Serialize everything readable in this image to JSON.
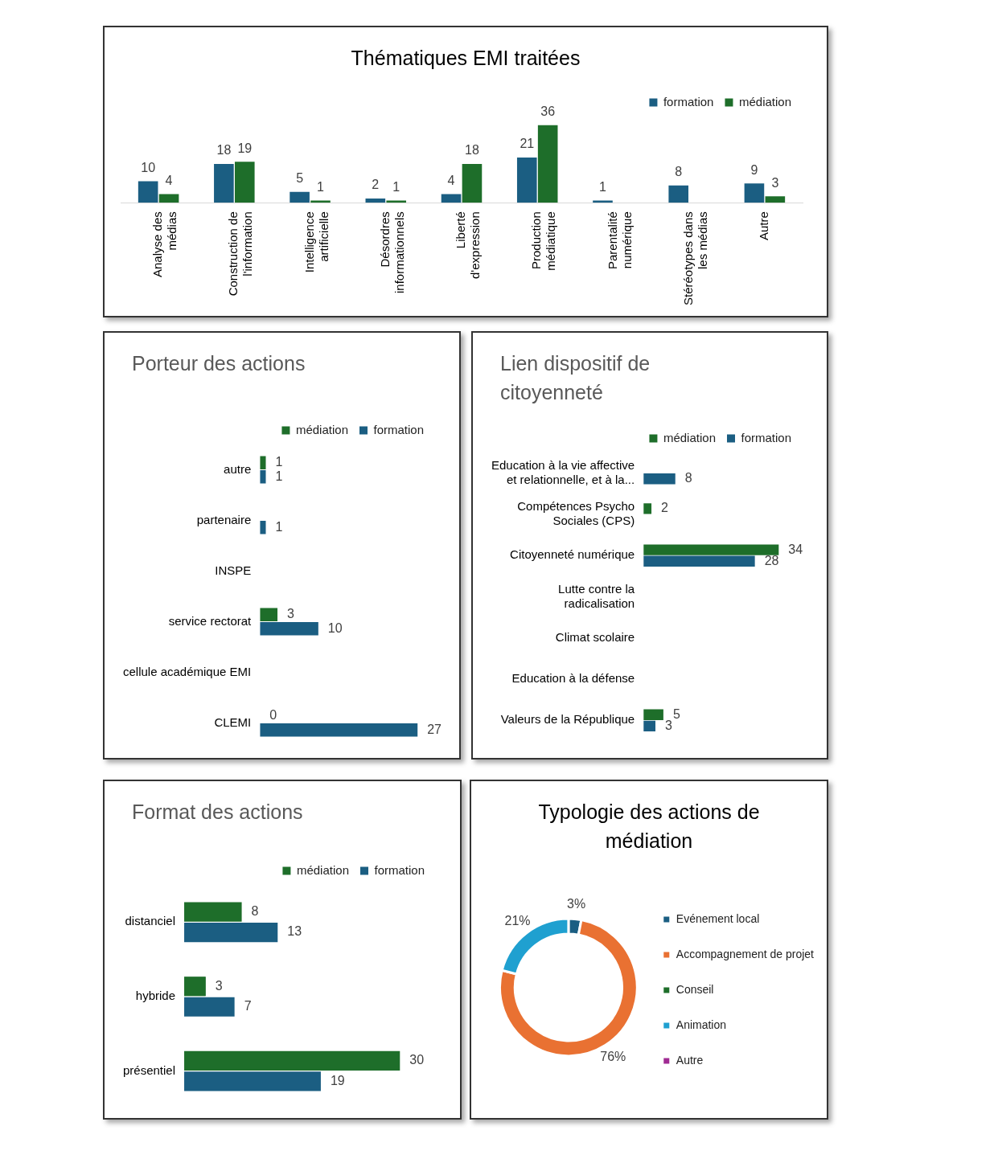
{
  "chart_data": [
    {
      "type": "bar",
      "title": "Thématiques EMI traitées",
      "categories": [
        "Analyse des médias",
        "Construction de l'information",
        "Intelligence artificielle",
        "Désordres informationnels",
        "Liberté d'expression",
        "Production médiatique",
        "Parentalité numérique",
        "Stéréotypes dans les médias",
        "Autre"
      ],
      "series": [
        {
          "name": "formation",
          "color": "#1b5e82",
          "values": [
            10,
            18,
            5,
            2,
            4,
            21,
            1,
            8,
            9
          ]
        },
        {
          "name": "médiation",
          "color": "#1e6e2a",
          "values": [
            4,
            19,
            1,
            1,
            18,
            36,
            null,
            null,
            3
          ]
        }
      ],
      "data_labels": true,
      "legend": "top right",
      "tick_labels": "x"
    },
    {
      "type": "bar",
      "orientation": "horizontal",
      "title": "Porteur des actions",
      "categories": [
        "autre",
        "partenaire",
        "INSPE",
        "service rectorat",
        "cellule académique EMI",
        "CLEMI"
      ],
      "series": [
        {
          "name": "médiation",
          "color": "#1e6e2a",
          "values": [
            1,
            null,
            null,
            3,
            null,
            0
          ]
        },
        {
          "name": "formation",
          "color": "#1b5e82",
          "values": [
            1,
            1,
            null,
            10,
            null,
            27
          ]
        }
      ],
      "data_labels": true,
      "legend": "top right",
      "tick_labels": "y"
    },
    {
      "type": "bar",
      "orientation": "horizontal",
      "title": "Lien dispositif de citoyenneté",
      "categories": [
        "Education à la vie affective et relationnelle, et à la...",
        "Compétences Psycho Sociales (CPS)",
        "Citoyenneté numérique",
        "Lutte contre la radicalisation",
        "Climat scolaire",
        "Education à la défense",
        "Valeurs de la République"
      ],
      "series": [
        {
          "name": "médiation",
          "color": "#1e6e2a",
          "values": [
            null,
            2,
            34,
            null,
            null,
            null,
            5
          ]
        },
        {
          "name": "formation",
          "color": "#1b5e82",
          "values": [
            8,
            null,
            28,
            null,
            null,
            null,
            3
          ]
        }
      ],
      "data_labels": true,
      "legend": "top right",
      "tick_labels": "y"
    },
    {
      "type": "bar",
      "orientation": "horizontal",
      "title": "Format des actions",
      "categories": [
        "distanciel",
        "hybride",
        "présentiel"
      ],
      "series": [
        {
          "name": "médiation",
          "color": "#1e6e2a",
          "values": [
            8,
            3,
            30
          ]
        },
        {
          "name": "formation",
          "color": "#1b5e82",
          "values": [
            13,
            7,
            19
          ]
        }
      ],
      "data_labels": true,
      "legend": "top right",
      "tick_labels": "y"
    },
    {
      "type": "donut",
      "title": "Typologie des actions de médiation",
      "categories": [
        "Evénement local",
        "Accompagnement de projet",
        "Conseil",
        "Animation",
        "Autre"
      ],
      "values": [
        3,
        76,
        0,
        21,
        0
      ],
      "colors": [
        "#1b5e82",
        "#e97132",
        "#1e6e2a",
        "#1fa0d0",
        "#a02b93"
      ],
      "value_labels": [
        "3%",
        "76%",
        null,
        "21%",
        null
      ],
      "legend": "right"
    }
  ]
}
